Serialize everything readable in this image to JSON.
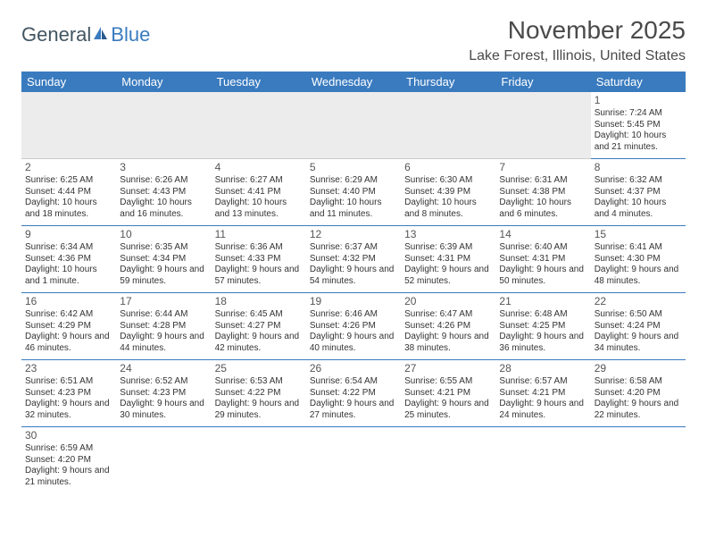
{
  "logo": {
    "part1": "General",
    "part2": "Blue"
  },
  "title": "November 2025",
  "location": "Lake Forest, Illinois, United States",
  "colors": {
    "header_bg": "#3a7bbf",
    "header_text": "#ffffff",
    "blank_bg": "#ececec",
    "cell_border": "#3a7bbf",
    "text": "#333333",
    "title_color": "#4a4a4a"
  },
  "fonts": {
    "title_size": 28,
    "location_size": 16,
    "dayheader_size": 13,
    "cell_size": 10,
    "daynum_size": 12
  },
  "day_headers": [
    "Sunday",
    "Monday",
    "Tuesday",
    "Wednesday",
    "Thursday",
    "Friday",
    "Saturday"
  ],
  "weeks": [
    [
      null,
      null,
      null,
      null,
      null,
      null,
      {
        "n": "1",
        "sr": "Sunrise: 7:24 AM",
        "ss": "Sunset: 5:45 PM",
        "dl": "Daylight: 10 hours and 21 minutes."
      }
    ],
    [
      {
        "n": "2",
        "sr": "Sunrise: 6:25 AM",
        "ss": "Sunset: 4:44 PM",
        "dl": "Daylight: 10 hours and 18 minutes."
      },
      {
        "n": "3",
        "sr": "Sunrise: 6:26 AM",
        "ss": "Sunset: 4:43 PM",
        "dl": "Daylight: 10 hours and 16 minutes."
      },
      {
        "n": "4",
        "sr": "Sunrise: 6:27 AM",
        "ss": "Sunset: 4:41 PM",
        "dl": "Daylight: 10 hours and 13 minutes."
      },
      {
        "n": "5",
        "sr": "Sunrise: 6:29 AM",
        "ss": "Sunset: 4:40 PM",
        "dl": "Daylight: 10 hours and 11 minutes."
      },
      {
        "n": "6",
        "sr": "Sunrise: 6:30 AM",
        "ss": "Sunset: 4:39 PM",
        "dl": "Daylight: 10 hours and 8 minutes."
      },
      {
        "n": "7",
        "sr": "Sunrise: 6:31 AM",
        "ss": "Sunset: 4:38 PM",
        "dl": "Daylight: 10 hours and 6 minutes."
      },
      {
        "n": "8",
        "sr": "Sunrise: 6:32 AM",
        "ss": "Sunset: 4:37 PM",
        "dl": "Daylight: 10 hours and 4 minutes."
      }
    ],
    [
      {
        "n": "9",
        "sr": "Sunrise: 6:34 AM",
        "ss": "Sunset: 4:36 PM",
        "dl": "Daylight: 10 hours and 1 minute."
      },
      {
        "n": "10",
        "sr": "Sunrise: 6:35 AM",
        "ss": "Sunset: 4:34 PM",
        "dl": "Daylight: 9 hours and 59 minutes."
      },
      {
        "n": "11",
        "sr": "Sunrise: 6:36 AM",
        "ss": "Sunset: 4:33 PM",
        "dl": "Daylight: 9 hours and 57 minutes."
      },
      {
        "n": "12",
        "sr": "Sunrise: 6:37 AM",
        "ss": "Sunset: 4:32 PM",
        "dl": "Daylight: 9 hours and 54 minutes."
      },
      {
        "n": "13",
        "sr": "Sunrise: 6:39 AM",
        "ss": "Sunset: 4:31 PM",
        "dl": "Daylight: 9 hours and 52 minutes."
      },
      {
        "n": "14",
        "sr": "Sunrise: 6:40 AM",
        "ss": "Sunset: 4:31 PM",
        "dl": "Daylight: 9 hours and 50 minutes."
      },
      {
        "n": "15",
        "sr": "Sunrise: 6:41 AM",
        "ss": "Sunset: 4:30 PM",
        "dl": "Daylight: 9 hours and 48 minutes."
      }
    ],
    [
      {
        "n": "16",
        "sr": "Sunrise: 6:42 AM",
        "ss": "Sunset: 4:29 PM",
        "dl": "Daylight: 9 hours and 46 minutes."
      },
      {
        "n": "17",
        "sr": "Sunrise: 6:44 AM",
        "ss": "Sunset: 4:28 PM",
        "dl": "Daylight: 9 hours and 44 minutes."
      },
      {
        "n": "18",
        "sr": "Sunrise: 6:45 AM",
        "ss": "Sunset: 4:27 PM",
        "dl": "Daylight: 9 hours and 42 minutes."
      },
      {
        "n": "19",
        "sr": "Sunrise: 6:46 AM",
        "ss": "Sunset: 4:26 PM",
        "dl": "Daylight: 9 hours and 40 minutes."
      },
      {
        "n": "20",
        "sr": "Sunrise: 6:47 AM",
        "ss": "Sunset: 4:26 PM",
        "dl": "Daylight: 9 hours and 38 minutes."
      },
      {
        "n": "21",
        "sr": "Sunrise: 6:48 AM",
        "ss": "Sunset: 4:25 PM",
        "dl": "Daylight: 9 hours and 36 minutes."
      },
      {
        "n": "22",
        "sr": "Sunrise: 6:50 AM",
        "ss": "Sunset: 4:24 PM",
        "dl": "Daylight: 9 hours and 34 minutes."
      }
    ],
    [
      {
        "n": "23",
        "sr": "Sunrise: 6:51 AM",
        "ss": "Sunset: 4:23 PM",
        "dl": "Daylight: 9 hours and 32 minutes."
      },
      {
        "n": "24",
        "sr": "Sunrise: 6:52 AM",
        "ss": "Sunset: 4:23 PM",
        "dl": "Daylight: 9 hours and 30 minutes."
      },
      {
        "n": "25",
        "sr": "Sunrise: 6:53 AM",
        "ss": "Sunset: 4:22 PM",
        "dl": "Daylight: 9 hours and 29 minutes."
      },
      {
        "n": "26",
        "sr": "Sunrise: 6:54 AM",
        "ss": "Sunset: 4:22 PM",
        "dl": "Daylight: 9 hours and 27 minutes."
      },
      {
        "n": "27",
        "sr": "Sunrise: 6:55 AM",
        "ss": "Sunset: 4:21 PM",
        "dl": "Daylight: 9 hours and 25 minutes."
      },
      {
        "n": "28",
        "sr": "Sunrise: 6:57 AM",
        "ss": "Sunset: 4:21 PM",
        "dl": "Daylight: 9 hours and 24 minutes."
      },
      {
        "n": "29",
        "sr": "Sunrise: 6:58 AM",
        "ss": "Sunset: 4:20 PM",
        "dl": "Daylight: 9 hours and 22 minutes."
      }
    ],
    [
      {
        "n": "30",
        "sr": "Sunrise: 6:59 AM",
        "ss": "Sunset: 4:20 PM",
        "dl": "Daylight: 9 hours and 21 minutes."
      },
      null,
      null,
      null,
      null,
      null,
      null
    ]
  ]
}
